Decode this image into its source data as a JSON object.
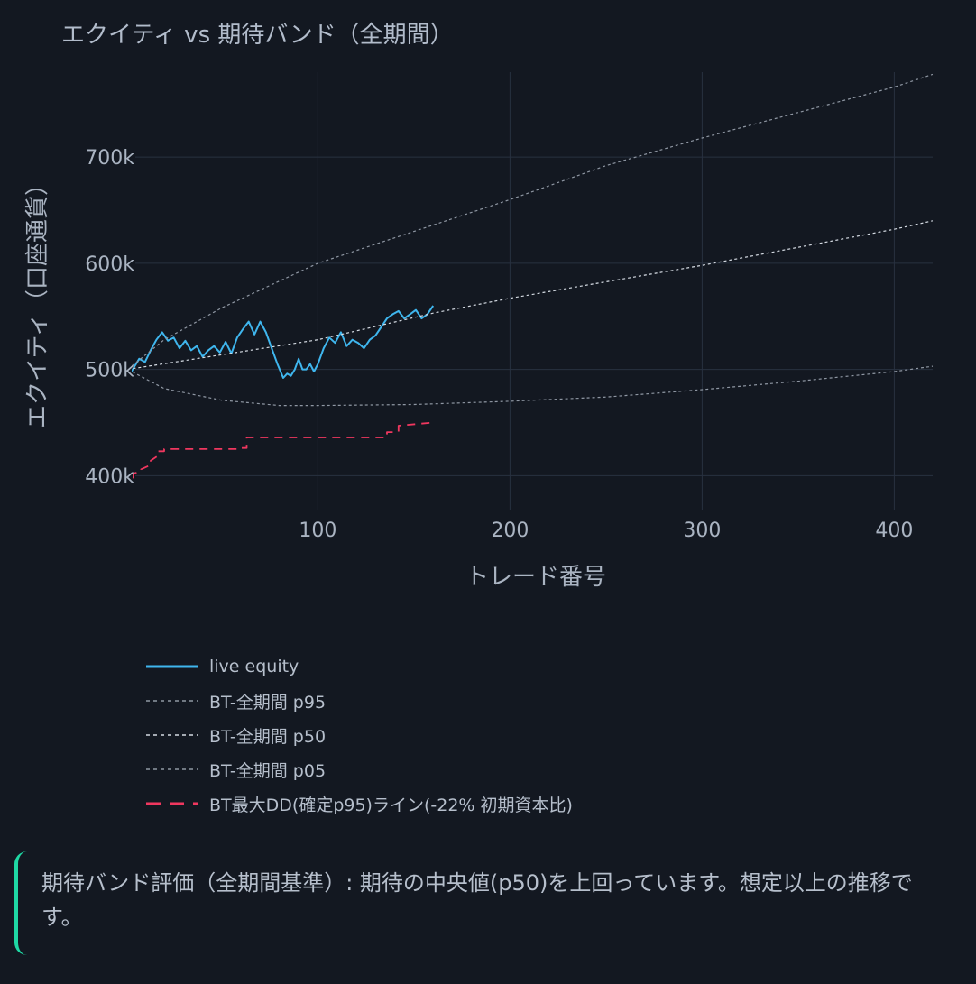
{
  "chart_data": {
    "type": "line",
    "title": "エクイティ vs 期待バンド（全期間）",
    "xlabel": "トレード番号",
    "ylabel": "エクイティ（口座通貨）",
    "xlim": [
      5,
      420
    ],
    "ylim": [
      368000,
      780000
    ],
    "xticks": [
      100,
      200,
      300,
      400
    ],
    "yticks": [
      400000,
      500000,
      600000,
      700000
    ],
    "ytick_labels": [
      "400k",
      "500k",
      "600k",
      "700k"
    ],
    "grid": true,
    "legend_position": "bottom-left",
    "series": [
      {
        "name": "live equity",
        "color": "#3fb6ee",
        "style": "solid",
        "x": [
          1,
          3,
          5,
          7,
          10,
          13,
          16,
          19,
          22,
          25,
          28,
          31,
          34,
          37,
          40,
          43,
          46,
          49,
          52,
          55,
          58,
          61,
          64,
          67,
          70,
          73,
          76,
          79,
          82,
          84,
          86,
          88,
          90,
          92,
          94,
          96,
          98,
          100,
          103,
          106,
          109,
          112,
          115,
          118,
          121,
          124,
          127,
          130,
          133,
          136,
          139,
          142,
          145,
          148,
          151,
          154,
          157,
          160
        ],
        "y": [
          500000,
          498000,
          504000,
          510000,
          507000,
          518000,
          528000,
          535000,
          527000,
          530000,
          520000,
          527000,
          518000,
          522000,
          512000,
          518000,
          522000,
          516000,
          526000,
          515000,
          530000,
          538000,
          545000,
          533000,
          545000,
          535000,
          520000,
          505000,
          492000,
          496000,
          494000,
          500000,
          510000,
          500000,
          500000,
          505000,
          498000,
          505000,
          520000,
          530000,
          525000,
          535000,
          522000,
          528000,
          525000,
          520000,
          528000,
          532000,
          540000,
          548000,
          552000,
          555000,
          548000,
          552000,
          556000,
          548000,
          552000,
          560000
        ]
      },
      {
        "name": "BT-全期間 p95",
        "color": "#8f97a3",
        "style": "dot",
        "x": [
          1,
          20,
          50,
          100,
          150,
          200,
          250,
          300,
          350,
          400,
          420
        ],
        "y": [
          500000,
          528000,
          558000,
          600000,
          630000,
          660000,
          692000,
          718000,
          742000,
          766000,
          778000
        ]
      },
      {
        "name": "BT-全期間 p50",
        "color": "#d5dbe3",
        "style": "dot",
        "x": [
          1,
          100,
          160,
          200,
          300,
          400,
          420
        ],
        "y": [
          500000,
          528000,
          553000,
          567000,
          598000,
          632000,
          640000
        ]
      },
      {
        "name": "BT-全期間 p05",
        "color": "#8f97a3",
        "style": "dot",
        "x": [
          1,
          20,
          50,
          80,
          100,
          150,
          200,
          250,
          300,
          350,
          400,
          420
        ],
        "y": [
          500000,
          482000,
          471000,
          466000,
          466000,
          467000,
          470000,
          474000,
          481000,
          489000,
          498000,
          503000
        ]
      },
      {
        "name": "BT最大DD(確定p95)ライン(-22% 初期資本比)",
        "color": "#f0375f",
        "style": "dash",
        "x": [
          1,
          4,
          4,
          8,
          8,
          13,
          13,
          17,
          17,
          20,
          20,
          58,
          58,
          63,
          63,
          136,
          136,
          142,
          142,
          160
        ],
        "y": [
          385000,
          397000,
          402000,
          404000,
          406000,
          410000,
          414000,
          419000,
          423000,
          423000,
          425000,
          425000,
          426000,
          426000,
          436000,
          436000,
          441000,
          441000,
          447000,
          450000
        ]
      }
    ]
  },
  "note": {
    "text": "期待バンド評価（全期間基準）: 期待の中央値(p50)を上回っています。想定以上の推移です。"
  }
}
